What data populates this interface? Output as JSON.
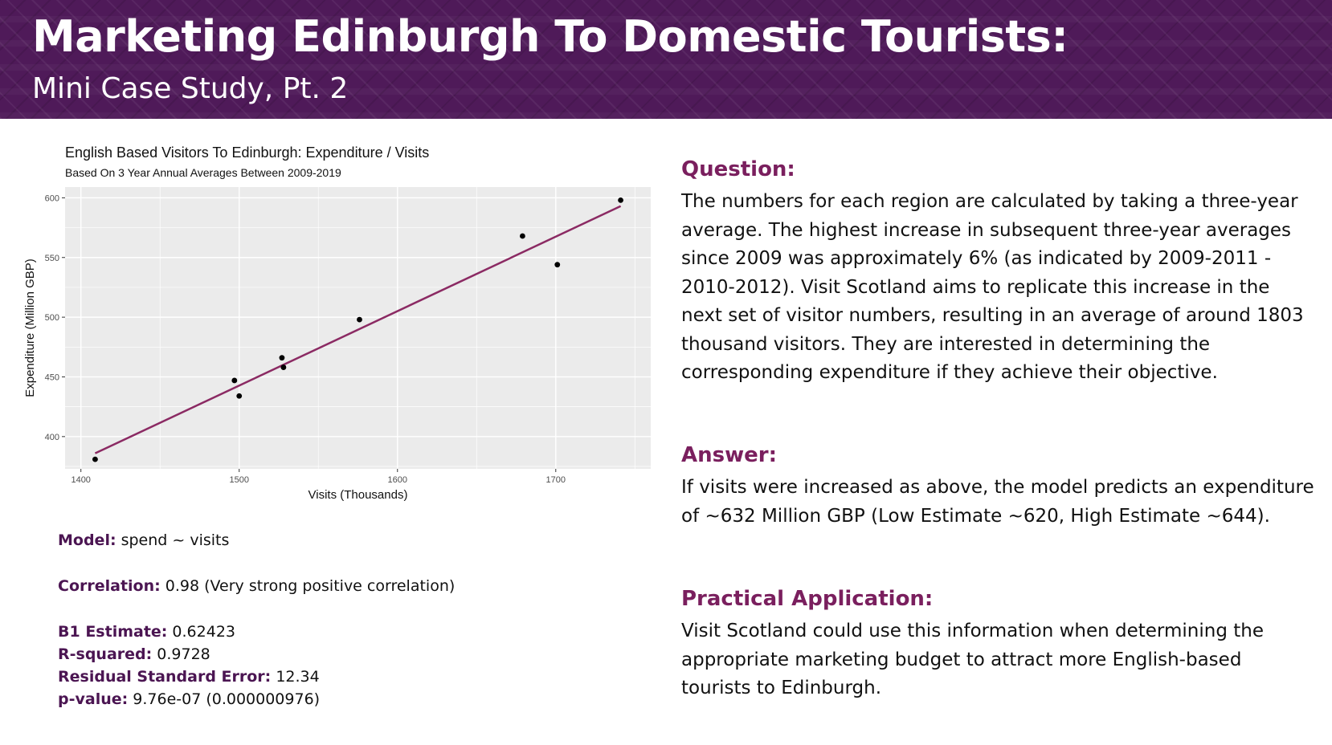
{
  "header": {
    "title": "Marketing Edinburgh To Domestic Tourists:",
    "subtitle": "Mini Case Study, Pt. 2"
  },
  "chart_data": {
    "type": "scatter",
    "title": "English Based Visitors To Edinburgh: Expenditure / Visits",
    "subtitle": "Based On 3 Year Annual Averages Between 2009-2019",
    "xlabel": "Visits (Thousands)",
    "ylabel": "Expenditure (Million GBP)",
    "xlim": [
      1390,
      1760
    ],
    "ylim": [
      373,
      609
    ],
    "x_ticks": [
      1400,
      1500,
      1600,
      1700
    ],
    "y_ticks": [
      400,
      450,
      500,
      550,
      600
    ],
    "grid": true,
    "colors": {
      "panel": "#ebebeb",
      "grid": "#ffffff",
      "points": "#000000",
      "fit_line": "#8b2a63"
    },
    "series": [
      {
        "values": [
          {
            "x": 1409,
            "y": 381
          },
          {
            "x": 1497,
            "y": 447
          },
          {
            "x": 1500,
            "y": 434
          },
          {
            "x": 1527,
            "y": 466
          },
          {
            "x": 1528,
            "y": 458
          },
          {
            "x": 1576,
            "y": 498
          },
          {
            "x": 1679,
            "y": 568
          },
          {
            "x": 1701,
            "y": 544
          },
          {
            "x": 1741,
            "y": 598
          }
        ]
      }
    ],
    "fit_line": {
      "x1": 1409,
      "y1": 386,
      "x2": 1741,
      "y2": 593
    }
  },
  "stats": {
    "model": {
      "label": "Model:",
      "value": " spend ~ visits"
    },
    "correlation": {
      "label": "Correlation:",
      "value": " 0.98 (Very strong positive correlation)"
    },
    "b1": {
      "label": "B1 Estimate:",
      "value": " 0.62423"
    },
    "rsq": {
      "label": "R-squared:",
      "value": " 0.9728"
    },
    "rse": {
      "label": "Residual Standard Error:",
      "value": " 12.34"
    },
    "pval": {
      "label": "p-value:",
      "value": " 9.76e-07 (0.000000976)"
    }
  },
  "question": {
    "heading": "Question:",
    "body": "The numbers for each region are calculated by taking a three-year average. The highest increase in subsequent three-year averages since 2009 was approximately 6% (as indicated by 2009-2011 - 2010-2012). Visit Scotland aims to replicate this increase in the next set of visitor numbers, resulting in an average of around 1803 thousand visitors. They are interested in determining the corresponding expenditure if they achieve their objective."
  },
  "answer": {
    "heading": "Answer:",
    "body": "If visits were increased as above, the model predicts an expenditure of ~632 Million GBP (Low Estimate ~620, High Estimate ~644)."
  },
  "application": {
    "heading": "Practical Application:",
    "body": "Visit Scotland could use this information when determining the appropriate marketing budget to attract more English-based tourists to Edinburgh."
  }
}
